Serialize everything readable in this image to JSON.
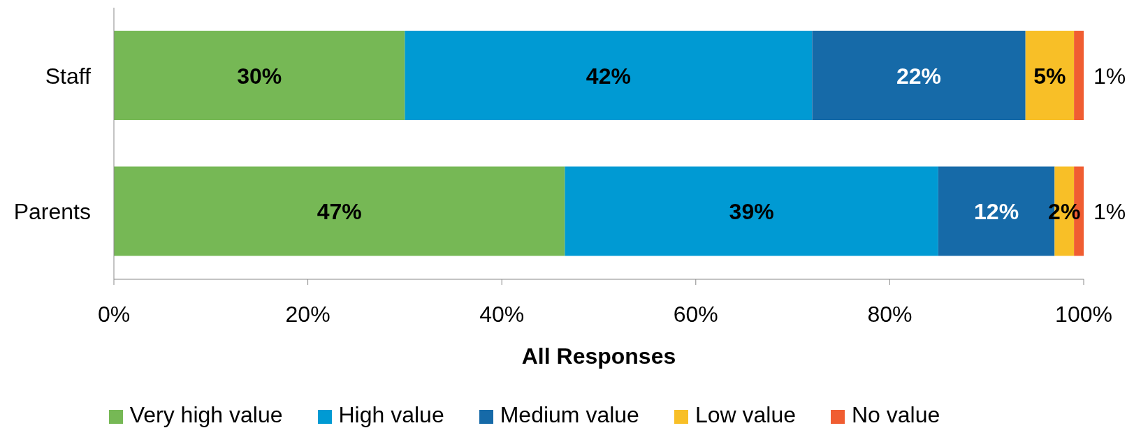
{
  "chart_data": {
    "type": "bar",
    "orientation": "horizontal",
    "stacked": true,
    "categories": [
      "Staff",
      "Parents"
    ],
    "series": [
      {
        "name": "Very high value",
        "color": "#76b855",
        "values": [
          30,
          46.5
        ],
        "value_labels": [
          "30%",
          "47%"
        ]
      },
      {
        "name": "High value",
        "color": "#009ad3",
        "values": [
          42,
          38.5
        ],
        "value_labels": [
          "42%",
          "39%"
        ]
      },
      {
        "name": "Medium value",
        "color": "#166aa8",
        "values": [
          22,
          12
        ],
        "value_labels": [
          "22%",
          "12%"
        ]
      },
      {
        "name": "Low value",
        "color": "#f8bf27",
        "values": [
          5,
          2
        ],
        "value_labels": [
          "5%",
          "2%"
        ]
      },
      {
        "name": "No value",
        "color": "#f05d31",
        "values": [
          1,
          1
        ],
        "value_labels": [
          "1%",
          "1%"
        ]
      }
    ],
    "xlabel": "All Responses",
    "xlim": [
      0,
      100
    ],
    "xticks": [
      {
        "value": 0,
        "label": "0%"
      },
      {
        "value": 20,
        "label": "20%"
      },
      {
        "value": 40,
        "label": "40%"
      },
      {
        "value": 60,
        "label": "60%"
      },
      {
        "value": 80,
        "label": "80%"
      },
      {
        "value": 100,
        "label": "100%"
      }
    ],
    "legend": "bottom"
  }
}
